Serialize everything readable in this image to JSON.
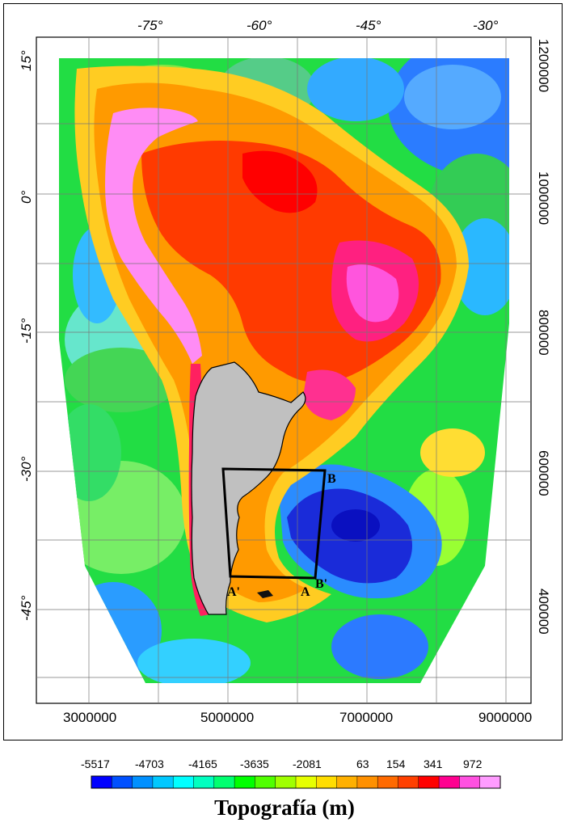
{
  "map": {
    "top_lon_labels": [
      "-75°",
      "-60°",
      "-45°",
      "-30°"
    ],
    "left_lat_labels": [
      "15°",
      "0°",
      "-15°",
      "-30°",
      "-45°"
    ],
    "right_y_labels": [
      "1200000",
      "1000000",
      "800000",
      "600000",
      "400000"
    ],
    "bottom_x_labels": [
      "3000000",
      "5000000",
      "7000000",
      "9000000"
    ],
    "section_labels": {
      "A": "A",
      "B": "B",
      "A_prime": "A'",
      "B_prime": "B'"
    }
  },
  "colorbar": {
    "title": "Topografía (m)",
    "tick_labels": [
      "-5517",
      "-4703",
      "-4165",
      "-3635",
      "-2081",
      "63",
      "154",
      "341",
      "972"
    ],
    "colors": [
      "#0000ff",
      "#0050ff",
      "#0090ff",
      "#00c8ff",
      "#00ffff",
      "#00ffc0",
      "#00ff70",
      "#00ff00",
      "#50ff00",
      "#a0ff00",
      "#e6ff00",
      "#ffdd00",
      "#ffb000",
      "#ff9000",
      "#ff6a00",
      "#ff4000",
      "#ff0000",
      "#ff0090",
      "#ff50e0",
      "#ff9cff"
    ]
  },
  "colors": {
    "land_gray": "#c0c0c0",
    "ocean_deep": "#1a2bd9",
    "continent_orange": "#ff9a00",
    "andes_pink": "#ff8cf5"
  }
}
